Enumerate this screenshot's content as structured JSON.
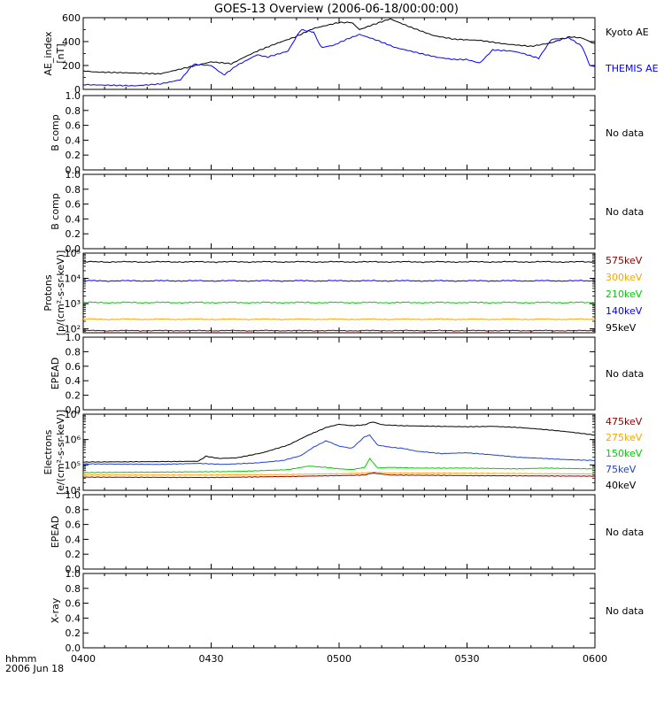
{
  "title": "GOES-13 Overview (2006-06-18/00:00:00)",
  "time_axis": {
    "title_line1": "hhmm",
    "title_line2": "2006 Jun 18",
    "ticks": [
      "0400",
      "0430",
      "0500",
      "0530",
      "0600"
    ]
  },
  "colors": {
    "axis": "#000000",
    "black": "#000000",
    "blue": "#0000ff",
    "green": "#00d000",
    "orange": "#ffa500",
    "darkred": "#8b0000",
    "midblue": "#2040d0"
  },
  "chart_data": [
    {
      "type": "line",
      "panel": "ae",
      "ylabel": [
        "AE_index",
        "[nT]"
      ],
      "ylim": [
        0,
        600
      ],
      "yticks": [
        "0",
        "200",
        "400",
        "600"
      ],
      "x_unit": "hours UT",
      "series": [
        {
          "name": "Kyoto AE",
          "color": "#000000",
          "x": [
            4.0,
            4.05,
            4.15,
            4.3,
            4.42,
            4.5,
            4.58,
            4.63,
            4.68,
            4.75,
            4.83,
            4.9,
            5.0,
            5.05,
            5.08,
            5.13,
            5.2,
            5.28,
            5.37,
            5.45,
            5.55,
            5.65,
            5.75,
            5.83,
            5.9,
            5.95,
            6.0
          ],
          "y": [
            155,
            145,
            140,
            130,
            190,
            230,
            215,
            270,
            320,
            380,
            440,
            510,
            560,
            560,
            500,
            540,
            590,
            520,
            450,
            420,
            410,
            380,
            360,
            390,
            440,
            430,
            380
          ]
        },
        {
          "name": "THEMIS AE",
          "color": "#0000ff",
          "x": [
            4.0,
            4.1,
            4.2,
            4.3,
            4.38,
            4.43,
            4.5,
            4.55,
            4.6,
            4.68,
            4.72,
            4.8,
            4.85,
            4.9,
            4.93,
            4.98,
            5.03,
            5.08,
            5.15,
            5.22,
            5.3,
            5.38,
            5.45,
            5.5,
            5.55,
            5.6,
            5.68,
            5.72,
            5.78,
            5.83,
            5.9,
            5.95,
            5.98,
            6.0
          ],
          "y": [
            40,
            35,
            30,
            45,
            80,
            210,
            200,
            120,
            200,
            290,
            270,
            320,
            500,
            480,
            350,
            370,
            420,
            460,
            410,
            350,
            310,
            270,
            250,
            250,
            220,
            330,
            320,
            300,
            260,
            420,
            430,
            360,
            200,
            190
          ]
        }
      ],
      "legend": [
        "Kyoto AE",
        "THEMIS AE"
      ]
    },
    {
      "type": "line",
      "panel": "bcomp1",
      "ylabel": [
        "B comp"
      ],
      "ylim": [
        0,
        1
      ],
      "yticks": [
        "0.0",
        "0.2",
        "0.4",
        "0.6",
        "0.8",
        "1.0"
      ],
      "series": [],
      "note": "No data"
    },
    {
      "type": "line",
      "panel": "bcomp2",
      "ylabel": [
        "B comp"
      ],
      "ylim": [
        0,
        1
      ],
      "yticks": [
        "0.0",
        "0.2",
        "0.4",
        "0.6",
        "0.8",
        "1.0"
      ],
      "series": [],
      "note": "No data"
    },
    {
      "type": "line",
      "panel": "protons",
      "scale": "log",
      "ylabel": [
        "Protons",
        "[p/(cm²-s-sr-keV)]"
      ],
      "ylim": [
        70,
        100000
      ],
      "yticks": [
        "10²",
        "10³",
        "10⁴",
        "10⁵"
      ],
      "series": [
        {
          "name": "575keV",
          "color": "#8b0000",
          "base": 85,
          "ripple": 0.04
        },
        {
          "name": "300keV",
          "color": "#ffa500",
          "base": 240,
          "ripple": 0.05
        },
        {
          "name": "210keV",
          "color": "#00d000",
          "base": 1100,
          "ripple": 0.06
        },
        {
          "name": "140keV",
          "color": "#0000ff",
          "base": 8000,
          "ripple": 0.05
        },
        {
          "name": "95keV",
          "color": "#000000",
          "base": 45000,
          "ripple": 0.05
        }
      ],
      "legend": [
        "575keV",
        "300keV",
        "210keV",
        "140keV",
        "95keV"
      ]
    },
    {
      "type": "line",
      "panel": "epead1",
      "ylabel": [
        "EPEAD"
      ],
      "ylim": [
        0,
        1
      ],
      "yticks": [
        "0.0",
        "0.2",
        "0.4",
        "0.6",
        "0.8",
        "1.0"
      ],
      "series": [],
      "note": "No data"
    },
    {
      "type": "line",
      "panel": "electrons",
      "scale": "log",
      "ylabel": [
        "Electrons",
        "[e/(cm²-s-sr-keV)]"
      ],
      "ylim": [
        10000,
        10000000
      ],
      "yticks": [
        "10⁴",
        "10⁵",
        "10⁶",
        "10⁷"
      ],
      "x_unit": "hours UT",
      "series": [
        {
          "name": "475keV",
          "color": "#8b0000",
          "x": [
            4.0,
            4.5,
            4.8,
            5.0,
            5.1,
            5.13,
            5.2,
            5.5,
            6.0
          ],
          "y": [
            33000,
            32000,
            35000,
            38000,
            40000,
            48000,
            40000,
            38000,
            36000
          ]
        },
        {
          "name": "275keV",
          "color": "#ffa500",
          "x": [
            4.0,
            4.5,
            4.8,
            5.0,
            5.1,
            5.13,
            5.2,
            5.5,
            6.0
          ],
          "y": [
            40000,
            40000,
            42000,
            45000,
            48000,
            52000,
            48000,
            47000,
            44000
          ]
        },
        {
          "name": "150keV",
          "color": "#00d000",
          "x": [
            4.0,
            4.3,
            4.6,
            4.8,
            4.88,
            4.95,
            5.0,
            5.05,
            5.1,
            5.12,
            5.15,
            5.2,
            5.3,
            5.5,
            5.7,
            5.8,
            6.0
          ],
          "y": [
            50000,
            52000,
            55000,
            65000,
            90000,
            80000,
            70000,
            65000,
            80000,
            180000,
            75000,
            80000,
            75000,
            75000,
            70000,
            75000,
            70000
          ]
        },
        {
          "name": "75keV",
          "color": "#2040d0",
          "x": [
            4.0,
            4.3,
            4.45,
            4.55,
            4.68,
            4.78,
            4.85,
            4.9,
            4.95,
            5.0,
            5.05,
            5.1,
            5.12,
            5.15,
            5.2,
            5.25,
            5.3,
            5.4,
            5.5,
            5.6,
            5.7,
            5.8,
            5.9,
            6.0
          ],
          "y": [
            110000,
            105000,
            115000,
            105000,
            120000,
            150000,
            230000,
            500000,
            900000,
            550000,
            450000,
            1300000,
            1500000,
            600000,
            500000,
            450000,
            350000,
            280000,
            300000,
            250000,
            200000,
            180000,
            160000,
            150000
          ]
        },
        {
          "name": "40keV",
          "color": "#000000",
          "x": [
            4.0,
            4.3,
            4.45,
            4.48,
            4.53,
            4.6,
            4.7,
            4.8,
            4.88,
            4.95,
            5.0,
            5.05,
            5.1,
            5.13,
            5.17,
            5.25,
            5.4,
            5.5,
            5.6,
            5.7,
            5.8,
            5.9,
            6.0
          ],
          "y": [
            130000,
            135000,
            140000,
            220000,
            180000,
            190000,
            300000,
            600000,
            1500000,
            3000000,
            4000000,
            3500000,
            3800000,
            5000000,
            3800000,
            3500000,
            3300000,
            3200000,
            3300000,
            3000000,
            2500000,
            2000000,
            1500000
          ]
        }
      ],
      "legend": [
        "475keV",
        "275keV",
        "150keV",
        "75keV",
        "40keV"
      ]
    },
    {
      "type": "line",
      "panel": "epead2",
      "ylabel": [
        "EPEAD"
      ],
      "ylim": [
        0,
        1
      ],
      "yticks": [
        "0.0",
        "0.2",
        "0.4",
        "0.6",
        "0.8",
        "1.0"
      ],
      "series": [],
      "note": "No data"
    },
    {
      "type": "line",
      "panel": "xray",
      "ylabel": [
        "X-ray"
      ],
      "ylim": [
        0,
        1
      ],
      "yticks": [
        "0.0",
        "0.2",
        "0.4",
        "0.6",
        "0.8",
        "1.0"
      ],
      "series": [],
      "note": "No data"
    }
  ]
}
